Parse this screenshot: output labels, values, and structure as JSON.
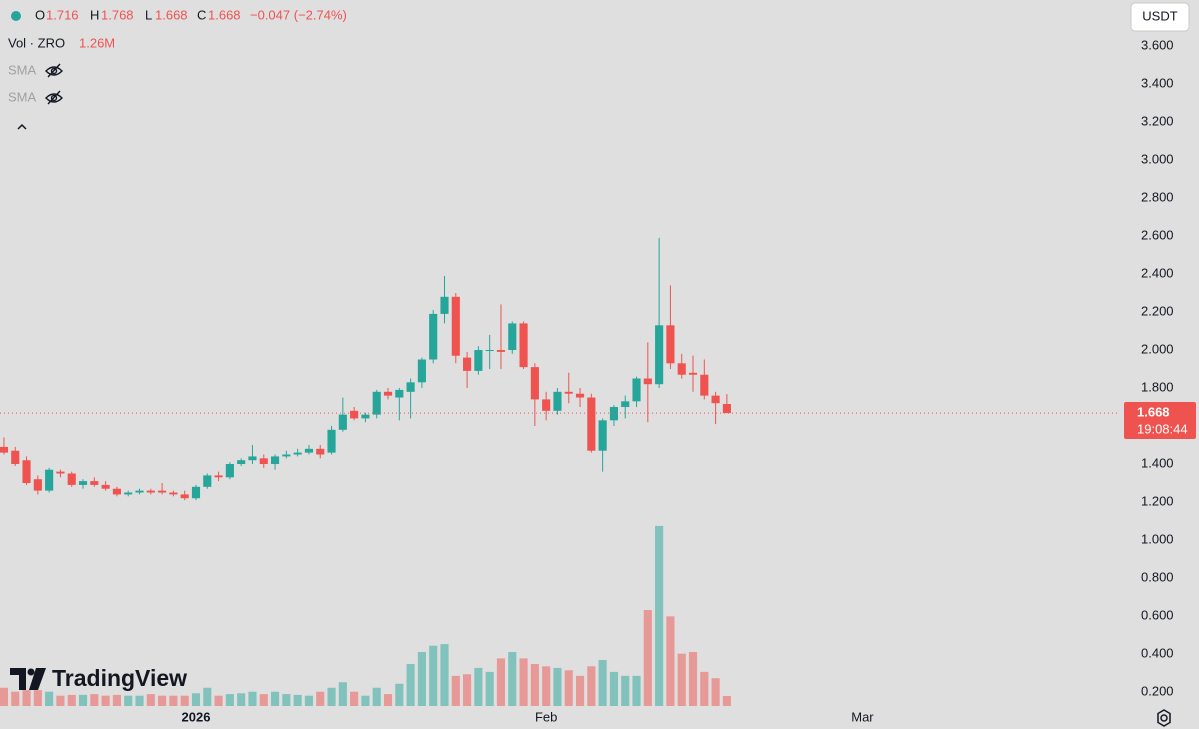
{
  "chart_data": {
    "type": "candlestick",
    "symbol_label": "Vol · ZRO",
    "volume_label": "1.26M",
    "change_text": "−0.047 (−2.74%)",
    "ohlc_labels": [
      "O",
      "H",
      "L",
      "C"
    ],
    "indicators": [
      "SMA",
      "SMA"
    ],
    "currency": "USDT",
    "countdown": "19:08:44",
    "brand": "TradingView",
    "up_color": "#26a69a",
    "down_color": "#ef5350",
    "open": [
      1.49,
      1.47,
      1.42,
      1.32,
      1.26,
      1.36,
      1.35,
      1.29,
      1.31,
      1.29,
      1.27,
      1.24,
      1.25,
      1.26,
      1.26,
      1.25,
      1.24,
      1.22,
      1.28,
      1.34,
      1.33,
      1.4,
      1.42,
      1.43,
      1.4,
      1.44,
      1.45,
      1.46,
      1.48,
      1.46,
      1.58,
      1.68,
      1.64,
      1.66,
      1.78,
      1.75,
      1.78,
      1.83,
      1.95,
      2.19,
      2.28,
      1.96,
      1.89,
      2.0,
      2.0,
      2.0,
      2.14,
      1.91,
      1.74,
      1.68,
      1.78,
      1.77,
      1.75,
      1.47,
      1.63,
      1.7,
      1.73,
      1.85,
      1.82,
      2.13,
      1.93,
      1.88,
      1.87,
      1.76,
      1.716
    ],
    "high": [
      1.54,
      1.49,
      1.44,
      1.34,
      1.38,
      1.37,
      1.36,
      1.32,
      1.33,
      1.31,
      1.28,
      1.26,
      1.27,
      1.27,
      1.3,
      1.26,
      1.26,
      1.29,
      1.35,
      1.36,
      1.41,
      1.43,
      1.5,
      1.45,
      1.45,
      1.47,
      1.48,
      1.5,
      1.5,
      1.6,
      1.75,
      1.7,
      1.67,
      1.79,
      1.8,
      1.8,
      1.85,
      1.96,
      2.21,
      2.39,
      2.3,
      1.99,
      2.02,
      2.08,
      2.24,
      2.15,
      2.15,
      1.93,
      1.78,
      1.8,
      1.88,
      1.8,
      1.77,
      1.64,
      1.71,
      1.76,
      1.86,
      2.04,
      2.59,
      2.34,
      1.98,
      1.97,
      1.95,
      1.78,
      1.768
    ],
    "low": [
      1.45,
      1.39,
      1.29,
      1.24,
      1.25,
      1.33,
      1.28,
      1.27,
      1.28,
      1.26,
      1.23,
      1.23,
      1.24,
      1.24,
      1.24,
      1.23,
      1.21,
      1.21,
      1.27,
      1.31,
      1.32,
      1.39,
      1.4,
      1.38,
      1.37,
      1.43,
      1.44,
      1.45,
      1.43,
      1.45,
      1.57,
      1.63,
      1.62,
      1.64,
      1.74,
      1.63,
      1.64,
      1.8,
      1.93,
      2.14,
      1.93,
      1.8,
      1.87,
      1.9,
      1.9,
      1.98,
      1.9,
      1.6,
      1.63,
      1.66,
      1.72,
      1.7,
      1.46,
      1.36,
      1.6,
      1.64,
      1.7,
      1.62,
      1.8,
      1.9,
      1.85,
      1.78,
      1.74,
      1.61,
      1.668
    ],
    "close": [
      1.46,
      1.4,
      1.3,
      1.26,
      1.37,
      1.35,
      1.29,
      1.31,
      1.29,
      1.27,
      1.24,
      1.25,
      1.26,
      1.25,
      1.25,
      1.24,
      1.22,
      1.28,
      1.34,
      1.33,
      1.4,
      1.42,
      1.44,
      1.4,
      1.44,
      1.45,
      1.46,
      1.48,
      1.45,
      1.58,
      1.66,
      1.64,
      1.66,
      1.78,
      1.76,
      1.79,
      1.83,
      1.95,
      2.19,
      2.28,
      1.97,
      1.89,
      2.0,
      2.0,
      1.99,
      2.14,
      1.91,
      1.74,
      1.68,
      1.78,
      1.77,
      1.75,
      1.47,
      1.63,
      1.7,
      1.73,
      1.85,
      1.82,
      2.13,
      1.93,
      1.87,
      1.87,
      1.76,
      1.72,
      1.668
    ],
    "volume": [
      2.3,
      1.8,
      2.0,
      2.0,
      1.8,
      1.3,
      1.4,
      1.4,
      1.5,
      1.3,
      1.4,
      1.3,
      1.3,
      1.5,
      1.3,
      1.3,
      1.3,
      1.6,
      2.3,
      1.3,
      1.5,
      1.6,
      1.8,
      1.5,
      1.8,
      1.5,
      1.4,
      1.3,
      1.8,
      2.3,
      3.0,
      1.8,
      1.3,
      2.3,
      1.5,
      2.8,
      5.3,
      6.8,
      7.6,
      7.8,
      3.8,
      4.0,
      4.8,
      4.3,
      6.0,
      6.8,
      6.0,
      5.3,
      5.0,
      4.8,
      4.5,
      3.8,
      5.0,
      5.8,
      4.3,
      3.8,
      3.8,
      12.1,
      22.7,
      11.3,
      6.6,
      6.8,
      4.3,
      3.5,
      1.26
    ],
    "volume_lim": [
      0,
      30
    ],
    "xlim": [
      -0.35,
      98.8
    ],
    "xticks": [
      {
        "value": 17,
        "label": "2026"
      },
      {
        "value": 48,
        "label": "Feb"
      },
      {
        "value": 76,
        "label": "Mar"
      }
    ],
    "ylim": [
      0.116,
      3.842
    ],
    "yticks": [
      {
        "value": 3.6,
        "label": "3.600"
      },
      {
        "value": 3.4,
        "label": "3.400"
      },
      {
        "value": 3.2,
        "label": "3.200"
      },
      {
        "value": 3.0,
        "label": "3.000"
      },
      {
        "value": 2.8,
        "label": "2.800"
      },
      {
        "value": 2.6,
        "label": "2.600"
      },
      {
        "value": 2.4,
        "label": "2.400"
      },
      {
        "value": 2.2,
        "label": "2.200"
      },
      {
        "value": 2.0,
        "label": "2.000"
      },
      {
        "value": 1.8,
        "label": "1.800"
      },
      {
        "value": 1.4,
        "label": "1.400"
      },
      {
        "value": 1.2,
        "label": "1.200"
      },
      {
        "value": 1.0,
        "label": "1.000"
      },
      {
        "value": 0.8,
        "label": "0.800"
      },
      {
        "value": 0.6,
        "label": "0.600"
      },
      {
        "value": 0.4,
        "label": "0.400"
      },
      {
        "value": 0.2,
        "label": "0.200"
      }
    ]
  }
}
